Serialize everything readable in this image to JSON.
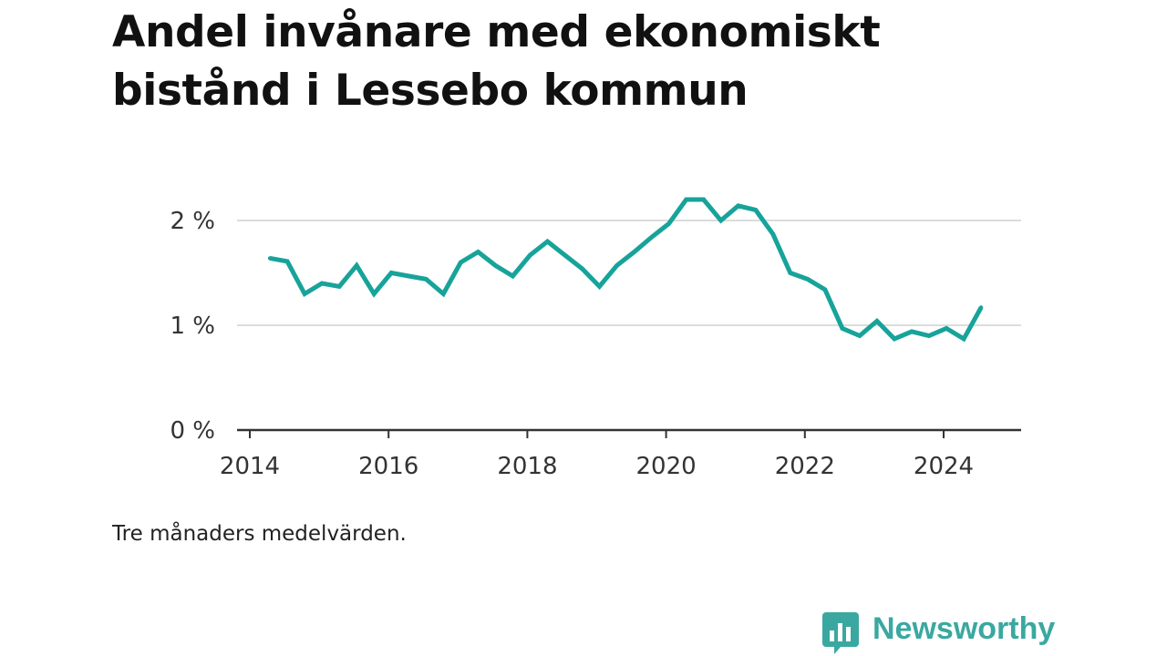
{
  "title": "Andel invånare med ekonomiskt bistånd i Lessebo kommun",
  "note": "Tre månaders medelvärden.",
  "brand": {
    "name": "Newsworthy",
    "color": "#3aa8a0",
    "icon": "bar-chart-speech-bubble-icon"
  },
  "colors": {
    "line": "#17a39a",
    "grid": "#dcdcdc",
    "axis": "#333333"
  },
  "chart_data": {
    "type": "line",
    "title": "Andel invånare med ekonomiskt bistånd i Lessebo kommun",
    "xlabel": "",
    "ylabel": "",
    "xlim": [
      2014,
      2025.1
    ],
    "ylim": [
      0,
      2.4
    ],
    "x_ticks": [
      2014,
      2016,
      2018,
      2020,
      2022,
      2024
    ],
    "x_tick_labels": [
      "2014",
      "2016",
      "2018",
      "2020",
      "2022",
      "2024"
    ],
    "y_ticks": [
      0,
      1,
      2
    ],
    "y_tick_labels": [
      "0 %",
      "1 %",
      "2 %"
    ],
    "grid": true,
    "series": [
      {
        "x": [
          2014.29,
          2014.54,
          2014.79,
          2015.04,
          2015.29,
          2015.54,
          2015.79,
          2016.04,
          2016.29,
          2016.54,
          2016.79,
          2017.04,
          2017.29,
          2017.54,
          2017.79,
          2018.04,
          2018.29,
          2018.54,
          2018.79,
          2019.04,
          2019.29,
          2019.54,
          2019.79,
          2020.04,
          2020.29,
          2020.54,
          2020.79,
          2021.04,
          2021.29,
          2021.54,
          2021.79,
          2022.04,
          2022.29,
          2022.54,
          2022.79,
          2023.04,
          2023.29,
          2023.54,
          2023.79,
          2024.04,
          2024.29,
          2024.54
        ],
        "values": [
          1.64,
          1.61,
          1.3,
          1.4,
          1.37,
          1.57,
          1.3,
          1.5,
          1.47,
          1.44,
          1.3,
          1.6,
          1.7,
          1.57,
          1.47,
          1.67,
          1.8,
          1.67,
          1.54,
          1.37,
          1.57,
          1.7,
          1.84,
          1.97,
          2.2,
          2.2,
          2.0,
          2.14,
          2.1,
          1.87,
          1.5,
          1.44,
          1.34,
          0.97,
          0.9,
          1.04,
          0.87,
          0.94,
          0.9,
          0.97,
          0.87,
          1.17
        ]
      }
    ]
  }
}
